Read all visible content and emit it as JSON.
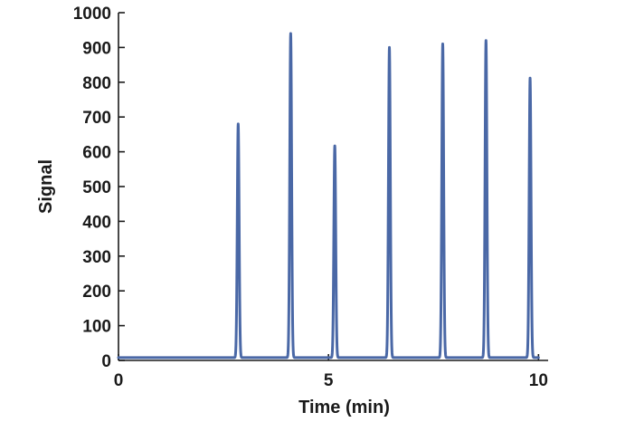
{
  "chart_data": {
    "type": "line",
    "title": "",
    "xlabel": "Time (min)",
    "ylabel": "Signal",
    "xlim": [
      0,
      10.1
    ],
    "ylim": [
      0,
      1000
    ],
    "x_ticks": [
      0,
      5,
      10
    ],
    "y_ticks": [
      0,
      100,
      200,
      300,
      400,
      500,
      600,
      700,
      800,
      900,
      1000
    ],
    "grid": false,
    "legend": "none",
    "baseline": 8,
    "series": [
      {
        "color": "#4a68a6",
        "peaks": [
          {
            "time": 2.85,
            "height": 680
          },
          {
            "time": 4.1,
            "height": 940
          },
          {
            "time": 5.15,
            "height": 617
          },
          {
            "time": 6.45,
            "height": 900
          },
          {
            "time": 7.72,
            "height": 910
          },
          {
            "time": 8.75,
            "height": 920
          },
          {
            "time": 9.8,
            "height": 812
          }
        ]
      }
    ]
  }
}
